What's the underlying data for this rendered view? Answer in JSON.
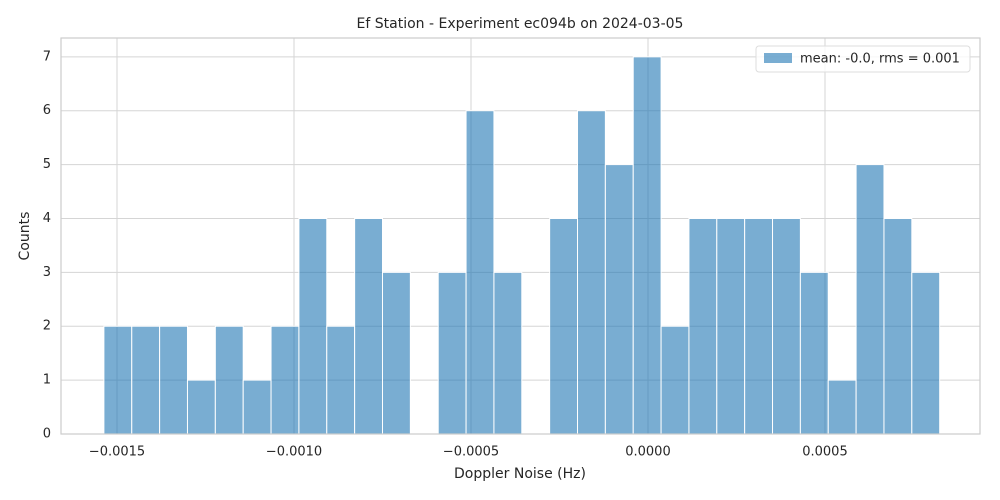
{
  "chart_data": {
    "type": "histogram",
    "title": "Ef Station - Experiment ec094b on 2024-03-05",
    "xlabel": "Doppler Noise (Hz)",
    "ylabel": "Counts",
    "bins": [
      -0.001537,
      -0.0014583,
      -0.0013796,
      -0.0013009,
      -0.0012222,
      -0.0011435,
      -0.0010648,
      -0.0009861,
      -0.0009074,
      -0.0008287,
      -0.00075,
      -0.0006713,
      -0.0005926,
      -0.0005139,
      -0.0004352,
      -0.0003565,
      -0.0002778,
      -0.0001991,
      -0.0001204,
      -4.17e-05,
      3.7e-05,
      0.0001157,
      0.0001944,
      0.0002731,
      0.0003518,
      0.0004305,
      0.0005092,
      0.0005879,
      0.0006666,
      0.0007453,
      0.000824
    ],
    "series": [
      {
        "name": "mean: -0.0, rms = 0.001",
        "color": "#1f77b4",
        "values": [
          2,
          2,
          2,
          1,
          2,
          1,
          2,
          4,
          2,
          4,
          3,
          0,
          3,
          6,
          3,
          0,
          4,
          6,
          5,
          7,
          2,
          4,
          4,
          4,
          4,
          3,
          1,
          5,
          4,
          3
        ]
      }
    ],
    "xlim": [
      -0.0016582,
      0.0009379
    ],
    "ylim": [
      0,
      7.35
    ],
    "xticks": [
      {
        "value": -0.0015,
        "label": "−0.0015"
      },
      {
        "value": -0.001,
        "label": "−0.0010"
      },
      {
        "value": -0.0005,
        "label": "−0.0005"
      },
      {
        "value": 0,
        "label": "0.0000"
      },
      0.0005
    ],
    "yticks": [
      0,
      1,
      2,
      3,
      4,
      5,
      6,
      7
    ],
    "grid": true,
    "legend": "upper right"
  }
}
